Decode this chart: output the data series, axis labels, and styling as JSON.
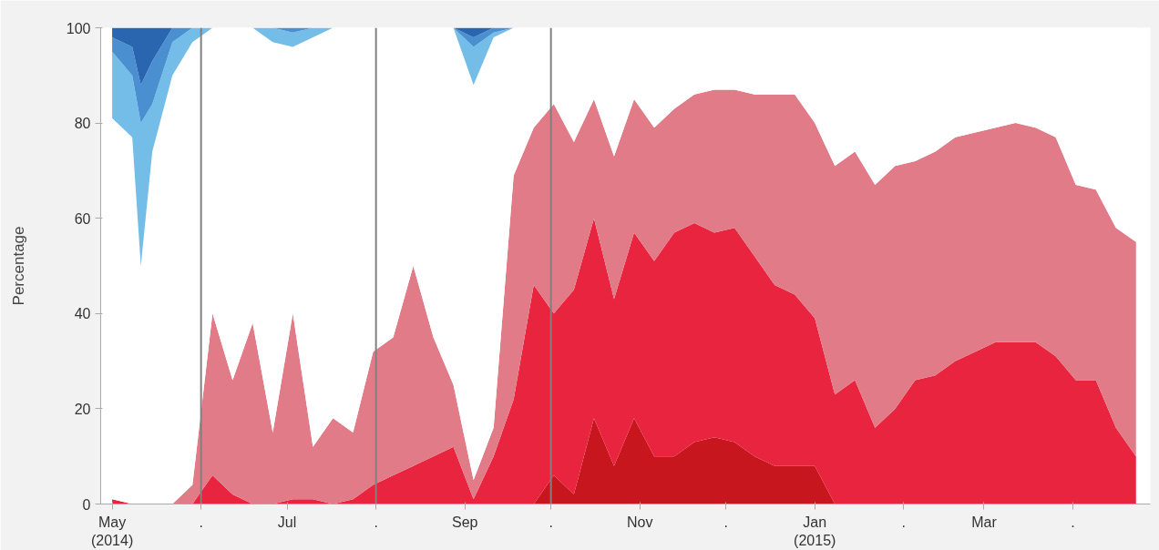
{
  "chart_data": {
    "type": "area",
    "stacked": true,
    "ylabel": "Percentage",
    "x": [
      "2014-05-01",
      "2014-05-08",
      "2014-05-11",
      "2014-05-15",
      "2014-05-22",
      "2014-05-29",
      "2014-06-05",
      "2014-06-12",
      "2014-06-19",
      "2014-06-26",
      "2014-07-03",
      "2014-07-10",
      "2014-07-17",
      "2014-07-24",
      "2014-07-31",
      "2014-08-07",
      "2014-08-14",
      "2014-08-21",
      "2014-08-28",
      "2014-09-04",
      "2014-09-11",
      "2014-09-18",
      "2014-09-25",
      "2014-10-02",
      "2014-10-09",
      "2014-10-16",
      "2014-10-23",
      "2014-10-30",
      "2014-11-06",
      "2014-11-13",
      "2014-11-20",
      "2014-11-27",
      "2014-12-04",
      "2014-12-11",
      "2014-12-18",
      "2014-12-25",
      "2015-01-01",
      "2015-01-08",
      "2015-01-15",
      "2015-01-22",
      "2015-01-29",
      "2015-02-05",
      "2015-02-12",
      "2015-02-19",
      "2015-02-26",
      "2015-03-05",
      "2015-03-12",
      "2015-03-19",
      "2015-03-26",
      "2015-04-02",
      "2015-04-09",
      "2015-04-16",
      "2015-04-23"
    ],
    "series": [
      {
        "color": "#c8161e",
        "values": [
          0,
          0,
          0,
          0,
          0,
          0,
          0,
          0,
          0,
          0,
          0,
          0,
          0,
          0,
          0,
          0,
          0,
          0,
          0,
          0,
          0,
          0,
          0,
          6,
          2,
          18,
          8,
          18,
          10,
          10,
          13,
          14,
          13,
          10,
          8,
          8,
          8,
          0,
          0,
          0,
          0,
          0,
          0,
          0,
          0,
          0,
          0,
          0,
          0,
          0,
          0,
          0,
          0
        ]
      },
      {
        "color": "#e8243f",
        "values": [
          1,
          0,
          0,
          0,
          0,
          0,
          6,
          2,
          0,
          0,
          1,
          1,
          0,
          1,
          4,
          6,
          8,
          10,
          12,
          1,
          10,
          22,
          46,
          34,
          43,
          42,
          35,
          39,
          41,
          47,
          46,
          43,
          45,
          42,
          38,
          36,
          31,
          23,
          26,
          16,
          20,
          26,
          27,
          30,
          32,
          34,
          34,
          34,
          31,
          26,
          26,
          16,
          10
        ]
      },
      {
        "color": "#e07b87",
        "values": [
          0,
          0,
          0,
          0,
          0,
          4,
          34,
          24,
          38,
          15,
          39,
          11,
          18,
          14,
          28,
          29,
          42,
          25,
          13,
          4,
          6,
          47,
          33,
          44,
          31,
          25,
          30,
          28,
          28,
          26,
          27,
          30,
          29,
          34,
          40,
          42,
          41,
          48,
          48,
          51,
          51,
          46,
          47,
          47,
          46,
          45,
          46,
          45,
          46,
          41,
          40,
          42,
          45
        ]
      },
      {
        "color": "#ffffff",
        "values": [
          80,
          77,
          50,
          74,
          90,
          93,
          60,
          74,
          62,
          82,
          56,
          86,
          82,
          85,
          68,
          65,
          50,
          65,
          75,
          83,
          82,
          31,
          21,
          16,
          24,
          15,
          27,
          15,
          21,
          17,
          14,
          13,
          13,
          14,
          14,
          14,
          20,
          29,
          26,
          33,
          29,
          28,
          26,
          23,
          22,
          21,
          20,
          21,
          23,
          33,
          34,
          42,
          45
        ]
      },
      {
        "color": "#74bde8",
        "values": [
          14,
          13,
          30,
          10,
          7,
          3,
          0,
          0,
          0,
          3,
          3,
          2,
          0,
          0,
          0,
          0,
          0,
          0,
          0,
          8,
          1,
          0,
          0,
          0,
          0,
          0,
          0,
          0,
          0,
          0,
          0,
          0,
          0,
          0,
          0,
          0,
          0,
          0,
          0,
          0,
          0,
          0,
          0,
          0,
          0,
          0,
          0,
          0,
          0,
          0,
          0,
          0,
          0
        ]
      },
      {
        "color": "#4a90d0",
        "values": [
          3,
          6,
          8,
          9,
          3,
          0,
          0,
          0,
          0,
          0,
          1,
          0,
          0,
          0,
          0,
          0,
          0,
          0,
          0,
          2,
          1,
          0,
          0,
          0,
          0,
          0,
          0,
          0,
          0,
          0,
          0,
          0,
          0,
          0,
          0,
          0,
          0,
          0,
          0,
          0,
          0,
          0,
          0,
          0,
          0,
          0,
          0,
          0,
          0,
          0,
          0,
          0,
          0
        ]
      },
      {
        "color": "#2a65b0",
        "values": [
          2,
          4,
          12,
          7,
          0,
          0,
          0,
          0,
          0,
          0,
          0,
          0,
          0,
          0,
          0,
          0,
          0,
          0,
          0,
          2,
          0,
          0,
          0,
          0,
          0,
          0,
          0,
          0,
          0,
          0,
          0,
          0,
          0,
          0,
          0,
          0,
          0,
          0,
          0,
          0,
          0,
          0,
          0,
          0,
          0,
          0,
          0,
          0,
          0,
          0,
          0,
          0,
          0
        ]
      }
    ],
    "xlim": [
      "2014-04-27",
      "2015-04-28"
    ],
    "xticks": [
      {
        "value": "2014-05-01",
        "label": "May\n(2014)"
      },
      {
        "value": "2014-06-01",
        "label": "."
      },
      {
        "value": "2014-07-01",
        "label": "Jul"
      },
      {
        "value": "2014-08-01",
        "label": "."
      },
      {
        "value": "2014-09-01",
        "label": "Sep"
      },
      {
        "value": "2014-10-01",
        "label": "."
      },
      {
        "value": "2014-11-01",
        "label": "Nov"
      },
      {
        "value": "2014-12-01",
        "label": "."
      },
      {
        "value": "2015-01-01",
        "label": "Jan\n(2015)"
      },
      {
        "value": "2015-02-01",
        "label": "."
      },
      {
        "value": "2015-03-01",
        "label": "Mar"
      },
      {
        "value": "2015-04-01",
        "label": "."
      }
    ],
    "ylim": [
      0,
      100
    ],
    "yticks": [
      0,
      20,
      40,
      60,
      80,
      100
    ],
    "grid": false,
    "ref_lines": [
      {
        "axis": "x",
        "value": "2014-06-01",
        "color": "#808080"
      },
      {
        "axis": "x",
        "value": "2014-08-01",
        "color": "#808080"
      },
      {
        "axis": "x",
        "value": "2014-10-01",
        "color": "#808080"
      }
    ]
  }
}
